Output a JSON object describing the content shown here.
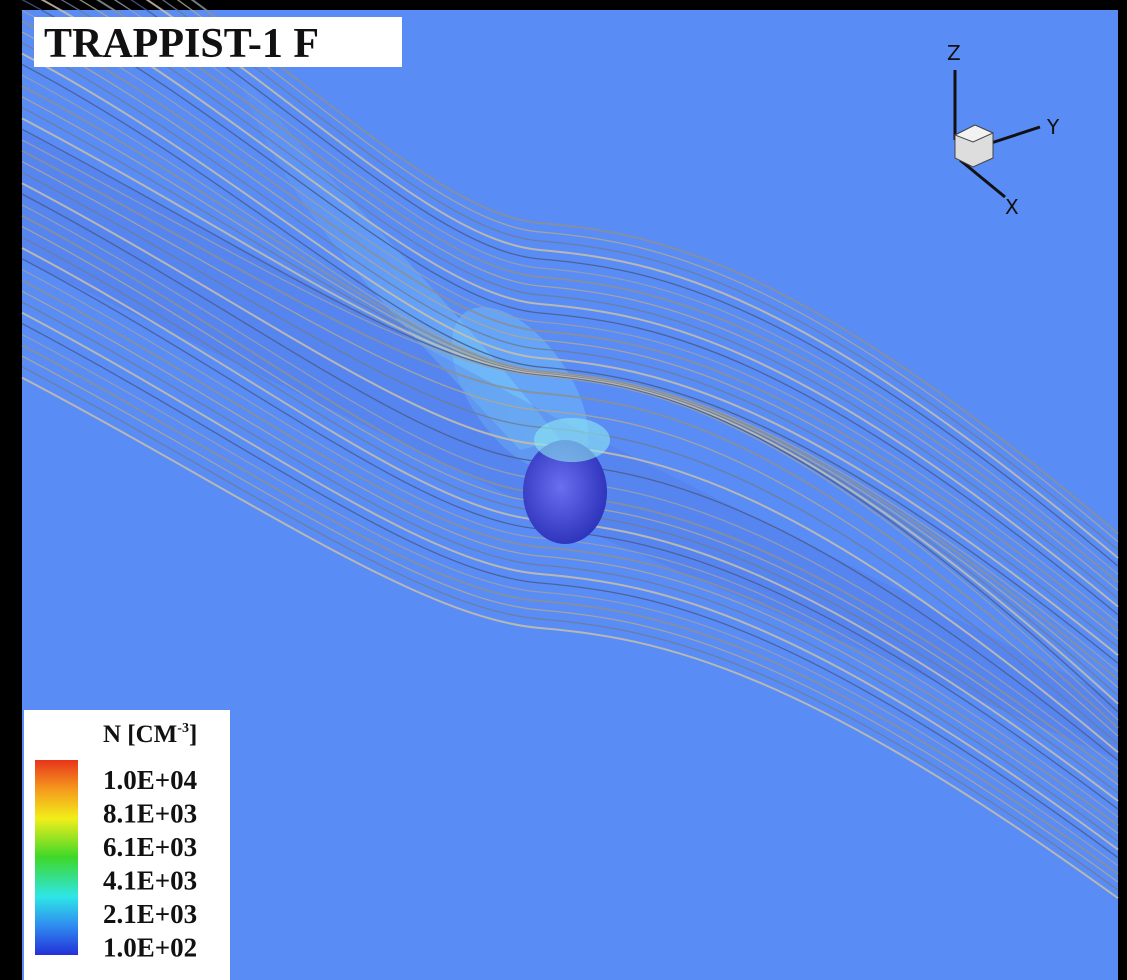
{
  "title": "TRAPPIST-1 F",
  "axes": {
    "z": "Z",
    "y": "Y",
    "x": "X"
  },
  "legend": {
    "title": "N [CM",
    "title_sup": "-3",
    "title_end": "]",
    "labels": [
      "1.0E+04",
      "8.1E+03",
      "6.1E+03",
      "4.1E+03",
      "2.1E+03",
      "1.0E+02"
    ]
  }
}
